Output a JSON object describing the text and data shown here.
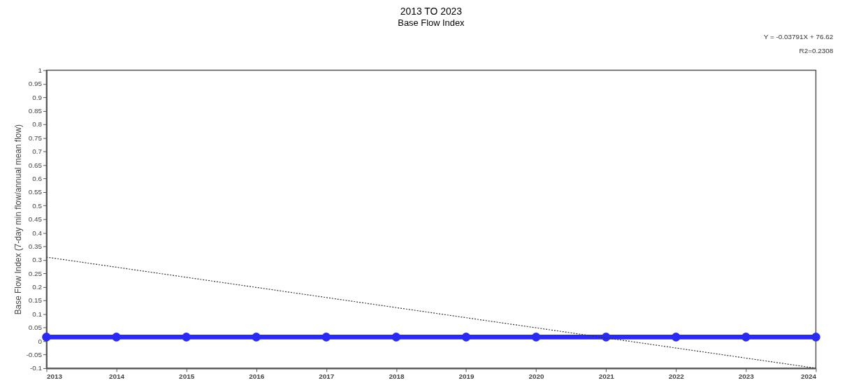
{
  "chart_data": {
    "type": "line",
    "title": "2013 TO 2023",
    "subtitle": "Base Flow Index",
    "ylabel": "Base Flow Index (7-day min flow/annual mean flow)",
    "x": [
      2013,
      2014,
      2015,
      2016,
      2017,
      2018,
      2019,
      2020,
      2021,
      2022,
      2023,
      2024
    ],
    "series": [
      {
        "color": "#2a2af0",
        "marker": "circle",
        "line_style": "solid",
        "values": [
          0.015,
          0.015,
          0.015,
          0.015,
          0.015,
          0.015,
          0.015,
          0.015,
          0.015,
          0.015,
          0.015,
          0.015
        ]
      },
      {
        "type": "line",
        "color": "#333333",
        "marker": "none",
        "line_style": "dotted",
        "x": [
          2013,
          2024
        ],
        "values": [
          0.31,
          -0.1
        ]
      }
    ],
    "xlim": [
      2013,
      2024
    ],
    "xticks": [
      2013,
      2014,
      2015,
      2016,
      2017,
      2018,
      2019,
      2020,
      2021,
      2022,
      2023,
      2024
    ],
    "ylim": [
      -0.1,
      1
    ],
    "yticks": [
      -0.1,
      -0.05,
      0,
      0.05,
      0.1,
      0.15,
      0.2,
      0.25,
      0.3,
      0.35,
      0.4,
      0.45,
      0.5,
      0.55,
      0.6,
      0.65,
      0.7,
      0.75,
      0.8,
      0.85,
      0.9,
      0.95,
      1
    ],
    "grid": false,
    "annotations": [
      "Y = -0.03791X + 76.62",
      "R2=0.2308"
    ]
  }
}
